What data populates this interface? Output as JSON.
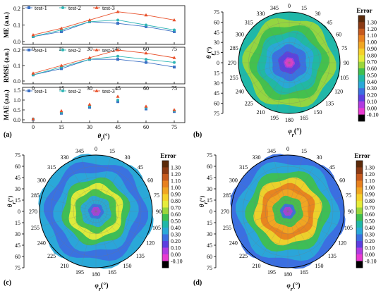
{
  "panel_labels": [
    "(a)",
    "(b)",
    "(c)",
    "(d)"
  ],
  "colorbar_title": "Error",
  "colorbar_ticks": [
    "1.30",
    "1.20",
    "1.10",
    "1.00",
    "0.90",
    "0.80",
    "0.70",
    "0.60",
    "0.50",
    "0.40",
    "0.30",
    "0.20",
    "0.10",
    "0.00",
    "-0.10"
  ],
  "colorbar_colors": [
    "#5b2a0a",
    "#8b3a14",
    "#c65a1e",
    "#e8811f",
    "#f0a623",
    "#f5d12a",
    "#e6ec3a",
    "#9bd63b",
    "#3fbf4f",
    "#20b7a8",
    "#2aa8d8",
    "#3b6fe0",
    "#5b3fe0",
    "#b03be0",
    "#e83bd0",
    "#000000"
  ],
  "polar_angle_ticks": [
    "345",
    "0",
    "15",
    "30",
    "45",
    "60",
    "75",
    "90",
    "105",
    "120",
    "135",
    "150",
    "165",
    "180",
    "195",
    "210",
    "225",
    "240",
    "255",
    "270",
    "285",
    "300",
    "315",
    "330"
  ],
  "polar_radial_ticks": [
    "75",
    "60",
    "45",
    "30",
    "15",
    "0"
  ],
  "polar_axis_label_theta": "θ",
  "polar_axis_label_theta_sub": "r",
  "polar_axis_label_phi": "φ",
  "polar_axis_label_phi_sub": "r",
  "polar_axis_unit": "(°)",
  "chart_data": [
    {
      "type": "line",
      "ylabel": "ME (a.u.)",
      "x": [
        0,
        15,
        30,
        45,
        60,
        75
      ],
      "ylim": [
        0,
        0.2
      ],
      "yticks": [
        "0.0",
        "0.1",
        "0.2"
      ],
      "series": [
        {
          "name": "test-1",
          "color": "#3a6fc4",
          "marker": "square",
          "values": [
            0.03,
            0.06,
            0.12,
            0.11,
            0.09,
            0.06
          ]
        },
        {
          "name": "test-2",
          "color": "#2fb5b5",
          "marker": "circle",
          "values": [
            0.03,
            0.07,
            0.12,
            0.13,
            0.1,
            0.07
          ]
        },
        {
          "name": "test-3",
          "color": "#e8502a",
          "marker": "triangle",
          "values": [
            0.04,
            0.08,
            0.13,
            0.18,
            0.16,
            0.13
          ]
        }
      ]
    },
    {
      "type": "line",
      "ylabel": "RMSE (a.u.)",
      "x": [
        0,
        15,
        30,
        45,
        60,
        75
      ],
      "ylim": [
        0,
        0.2
      ],
      "yticks": [
        "0.0",
        "0.1",
        "0.2"
      ],
      "series": [
        {
          "name": "test-1",
          "color": "#3a6fc4",
          "marker": "square",
          "values": [
            0.04,
            0.08,
            0.14,
            0.14,
            0.12,
            0.09
          ]
        },
        {
          "name": "test-2",
          "color": "#2fb5b5",
          "marker": "circle",
          "values": [
            0.04,
            0.09,
            0.14,
            0.16,
            0.14,
            0.12
          ]
        },
        {
          "name": "test-3",
          "color": "#e8502a",
          "marker": "triangle",
          "values": [
            0.05,
            0.1,
            0.15,
            0.2,
            0.18,
            0.15
          ]
        }
      ]
    },
    {
      "type": "scatter",
      "ylabel": "MAE (a.u.)",
      "xlabel": "θr(°)",
      "x": [
        0,
        15,
        30,
        45,
        60,
        75
      ],
      "ylim": [
        0,
        1.5
      ],
      "yticks": [
        "0.0",
        "0.5",
        "1.0",
        "1.5"
      ],
      "series": [
        {
          "name": "test-1",
          "color": "#3a6fc4",
          "marker": "square",
          "values": [
            0.02,
            0.33,
            0.63,
            0.92,
            0.55,
            0.42
          ]
        },
        {
          "name": "test-2",
          "color": "#2fb5b5",
          "marker": "circle",
          "values": [
            0.03,
            0.38,
            0.7,
            1.0,
            0.62,
            0.46
          ]
        },
        {
          "name": "test-3",
          "color": "#e8502a",
          "marker": "triangle",
          "values": [
            0.04,
            0.45,
            0.78,
            1.18,
            0.68,
            0.5
          ]
        }
      ]
    },
    {
      "type": "heatmap",
      "subtype": "polar",
      "panel": "(b)",
      "rings": [
        {
          "theta": 0,
          "color": "#e83bd0"
        },
        {
          "theta": 8,
          "color": "#b03be0"
        },
        {
          "theta": 16,
          "color": "#5b3fe0"
        },
        {
          "theta": 26,
          "color": "#3b6fe0"
        },
        {
          "theta": 36,
          "color": "#2aa8d8"
        },
        {
          "theta": 46,
          "color": "#20b7a8"
        },
        {
          "theta": 56,
          "color": "#3fbf4f"
        },
        {
          "theta": 66,
          "color": "#9bd63b"
        },
        {
          "theta": 72,
          "color": "#20b7a8"
        }
      ]
    },
    {
      "type": "heatmap",
      "subtype": "polar",
      "panel": "(c)",
      "rings": [
        {
          "theta": 0,
          "color": "#b03be0"
        },
        {
          "theta": 10,
          "color": "#3b6fe0"
        },
        {
          "theta": 20,
          "color": "#2aa8d8"
        },
        {
          "theta": 28,
          "color": "#3fbf4f"
        },
        {
          "theta": 36,
          "color": "#e6ec3a"
        },
        {
          "theta": 44,
          "color": "#3fbf4f"
        },
        {
          "theta": 54,
          "color": "#2aa8d8"
        },
        {
          "theta": 66,
          "color": "#3b6fe0"
        },
        {
          "theta": 74,
          "color": "#2aa8d8"
        }
      ]
    },
    {
      "type": "heatmap",
      "subtype": "polar",
      "panel": "(d)",
      "rings": [
        {
          "theta": 0,
          "color": "#b03be0"
        },
        {
          "theta": 10,
          "color": "#3b6fe0"
        },
        {
          "theta": 20,
          "color": "#3fbf4f"
        },
        {
          "theta": 28,
          "color": "#f0a623"
        },
        {
          "theta": 36,
          "color": "#e8811f"
        },
        {
          "theta": 44,
          "color": "#f5d12a"
        },
        {
          "theta": 54,
          "color": "#3fbf4f"
        },
        {
          "theta": 66,
          "color": "#2aa8d8"
        },
        {
          "theta": 74,
          "color": "#3b6fe0"
        }
      ]
    }
  ]
}
